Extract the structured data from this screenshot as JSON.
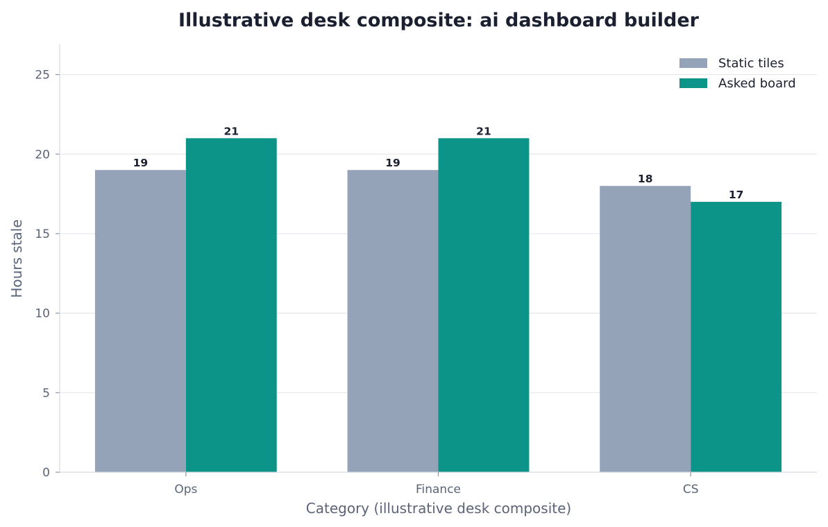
{
  "chart_data": {
    "type": "bar",
    "title": "Illustrative desk composite: ai dashboard builder",
    "xlabel": "Category (illustrative desk composite)",
    "ylabel": "Hours stale",
    "categories": [
      "Ops",
      "Finance",
      "CS"
    ],
    "series": [
      {
        "name": "Static tiles",
        "values": [
          19,
          19,
          18
        ],
        "color": "#94a3b8"
      },
      {
        "name": "Asked board",
        "values": [
          21,
          21,
          17
        ],
        "color": "#0d9488"
      }
    ],
    "ylim": [
      0,
      26.9
    ],
    "yticks": [
      0,
      5,
      10,
      15,
      20,
      25
    ],
    "grid": true,
    "legend_position": "top-right"
  }
}
